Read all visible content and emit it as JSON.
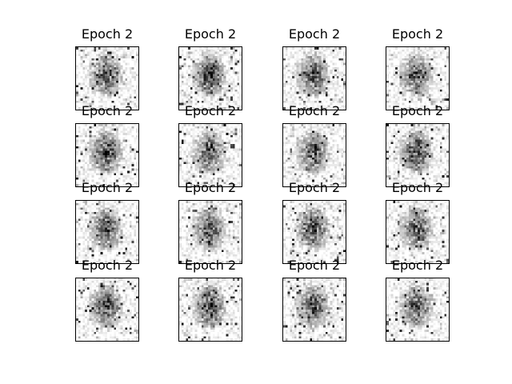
{
  "figure": {
    "panel_titles": [
      "Epoch 2",
      "Epoch 2",
      "Epoch 2",
      "Epoch 2",
      "Epoch 2",
      "Epoch 2",
      "Epoch 2",
      "Epoch 2",
      "Epoch 2",
      "Epoch 2",
      "Epoch 2",
      "Epoch 2",
      "Epoch 2",
      "Epoch 2",
      "Epoch 2",
      "Epoch 2"
    ]
  }
}
